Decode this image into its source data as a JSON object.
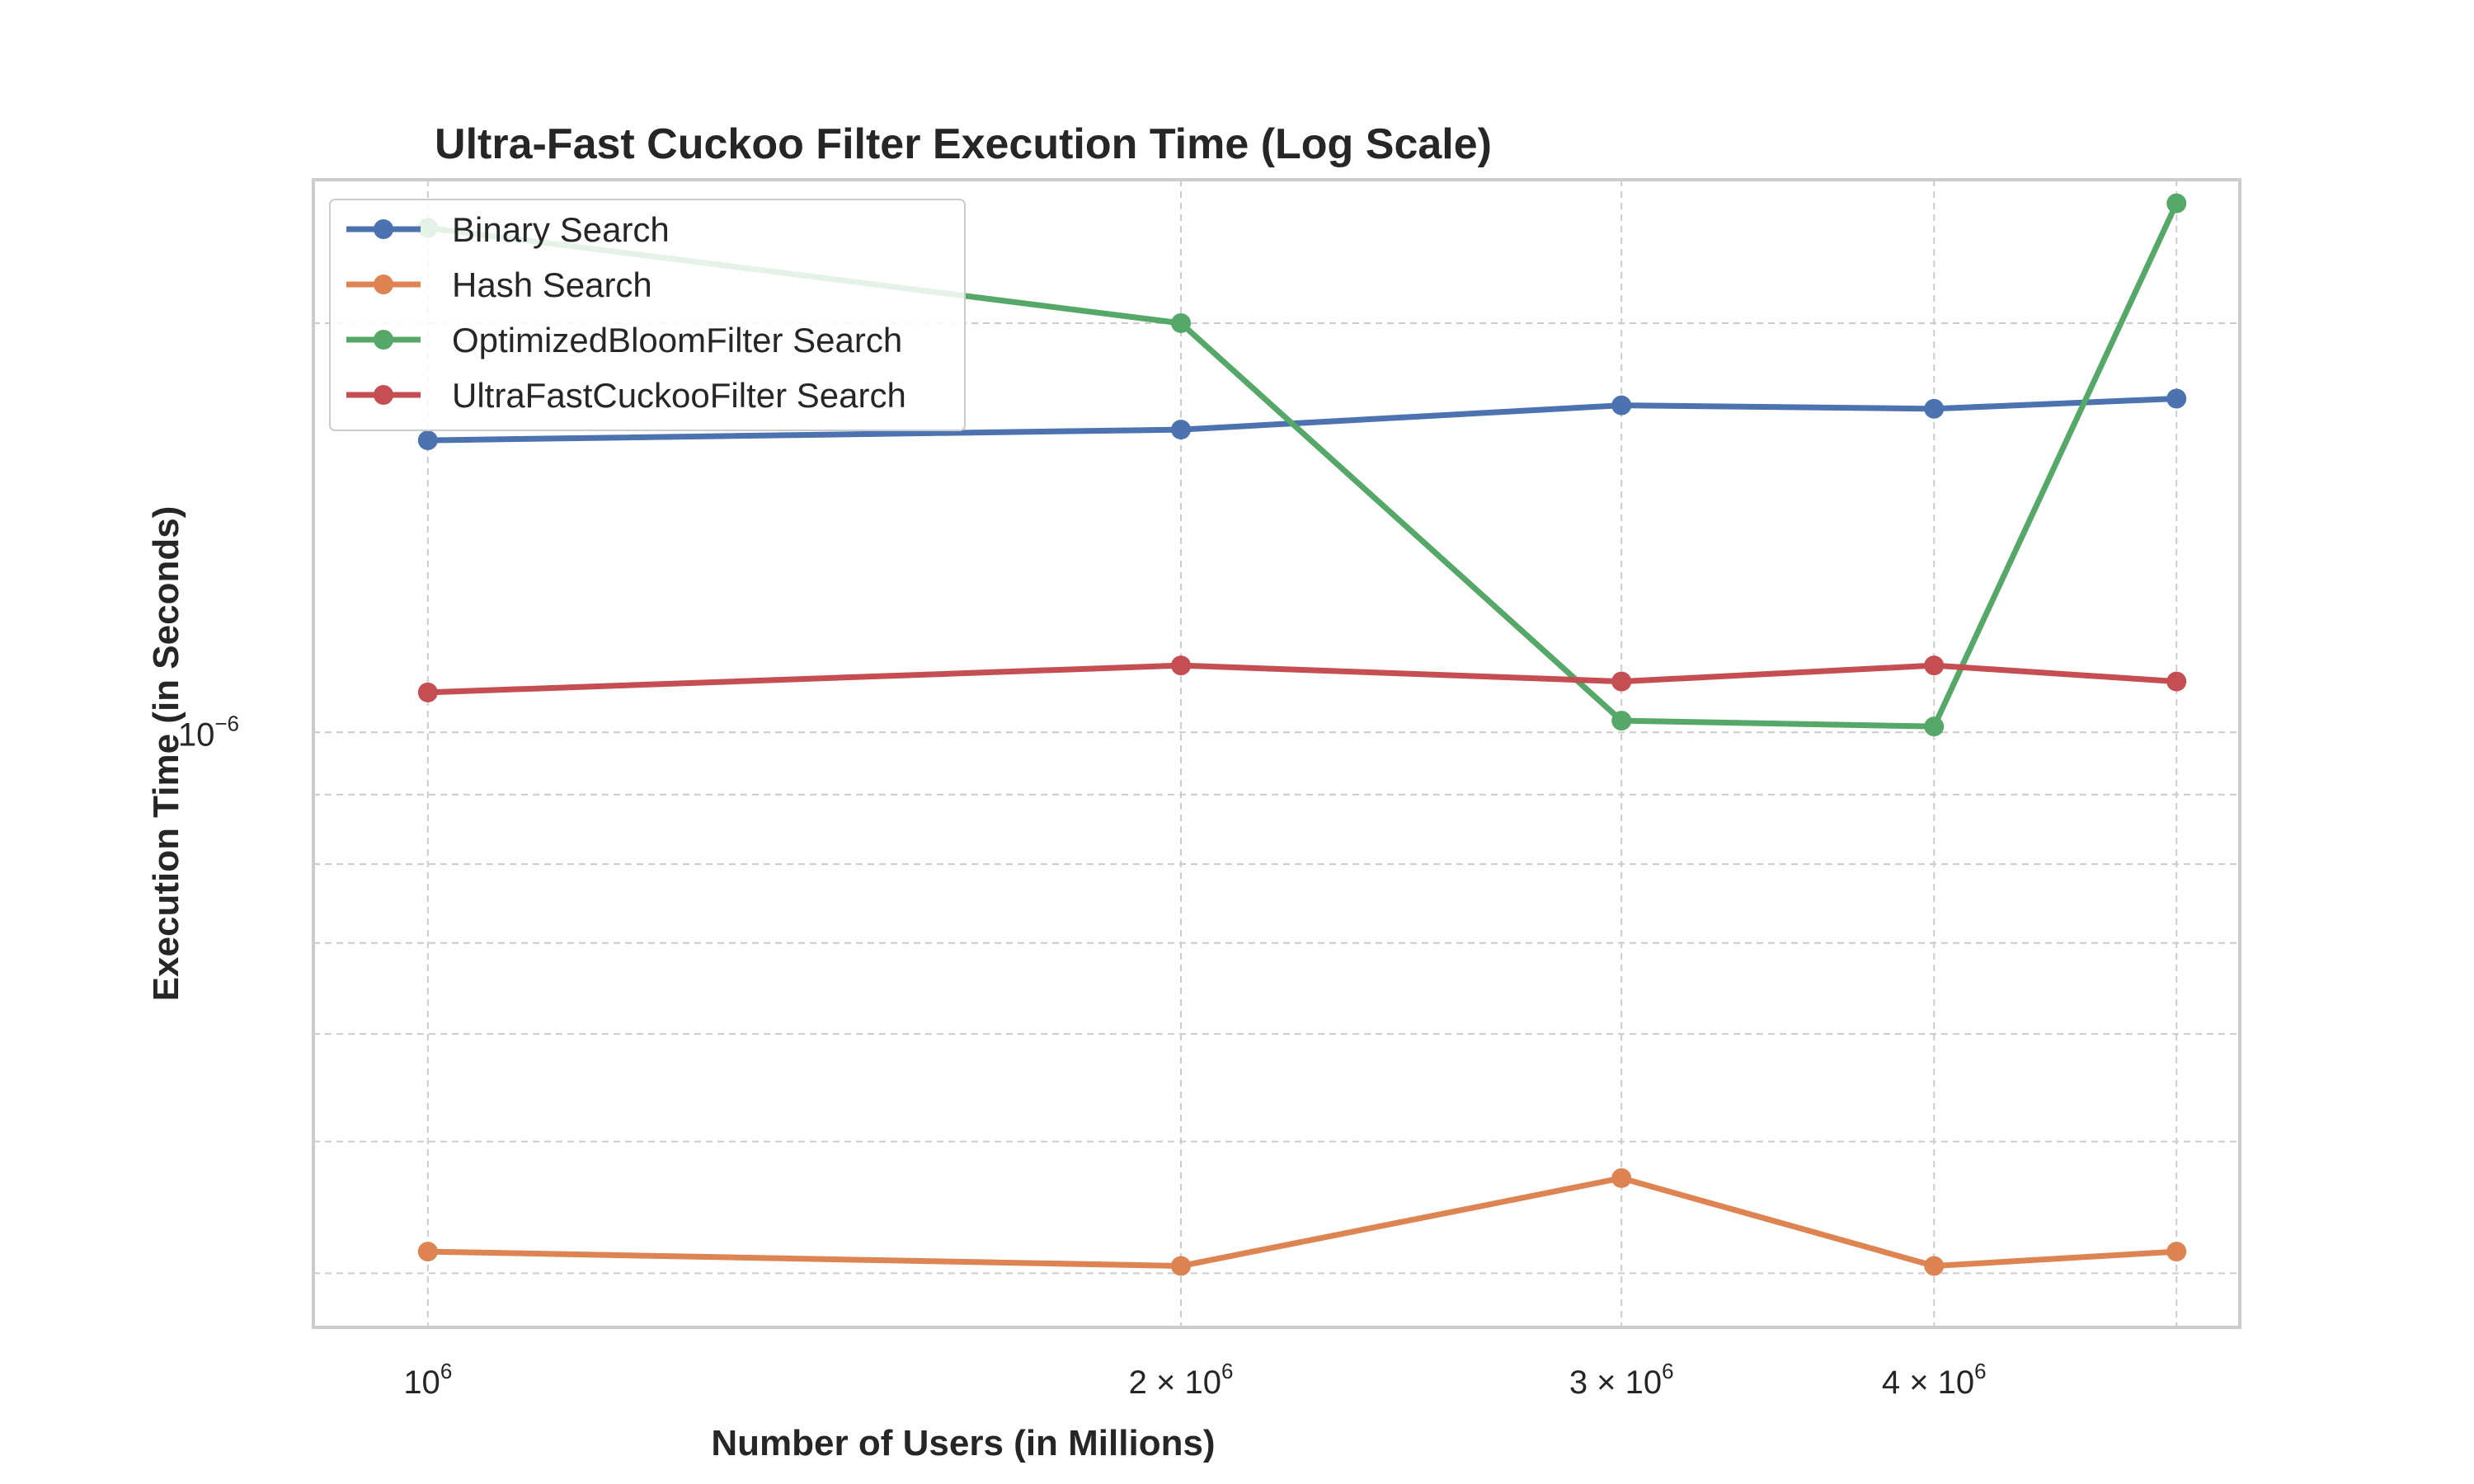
{
  "chart_data": {
    "type": "line",
    "title": "Ultra-Fast Cuckoo Filter Execution Time (Log Scale)",
    "xlabel": "Number of Users (in Millions)",
    "ylabel": "Execution Time (in Seconds)",
    "x_scale": "log",
    "y_scale": "log",
    "grid": true,
    "legend_position": "top-left",
    "x": [
      1000000,
      2000000,
      3000000,
      4000000,
      5000000
    ],
    "x_ticks": [
      {
        "value": 1000000,
        "base": "10",
        "exp": "6"
      },
      {
        "value": 2000000,
        "base": "2 × 10",
        "exp": "6"
      },
      {
        "value": 3000000,
        "base": "3 × 10",
        "exp": "6"
      },
      {
        "value": 4000000,
        "base": "4 × 10",
        "exp": "6"
      }
    ],
    "xlim": [
      900000,
      5300000
    ],
    "y_ticks": [
      {
        "value": 1e-06,
        "base": "10",
        "exp": "−6"
      }
    ],
    "ylim": [
      3.65e-07,
      2.55e-06
    ],
    "series": [
      {
        "name": "Binary Search",
        "color": "#4c72b0",
        "values": [
          1.64e-06,
          1.67e-06,
          1.74e-06,
          1.73e-06,
          1.76e-06
        ]
      },
      {
        "name": "Hash Search",
        "color": "#dd8452",
        "values": [
          4.15e-07,
          4.05e-07,
          4.7e-07,
          4.05e-07,
          4.15e-07
        ]
      },
      {
        "name": "OptimizedBloomFilter Search",
        "color": "#55a868",
        "values": [
          2.35e-06,
          2e-06,
          1.02e-06,
          1.01e-06,
          2.45e-06
        ]
      },
      {
        "name": "UltraFastCuckooFilter Search",
        "color": "#c44e52",
        "values": [
          1.07e-06,
          1.12e-06,
          1.09e-06,
          1.12e-06,
          1.09e-06
        ]
      }
    ]
  }
}
